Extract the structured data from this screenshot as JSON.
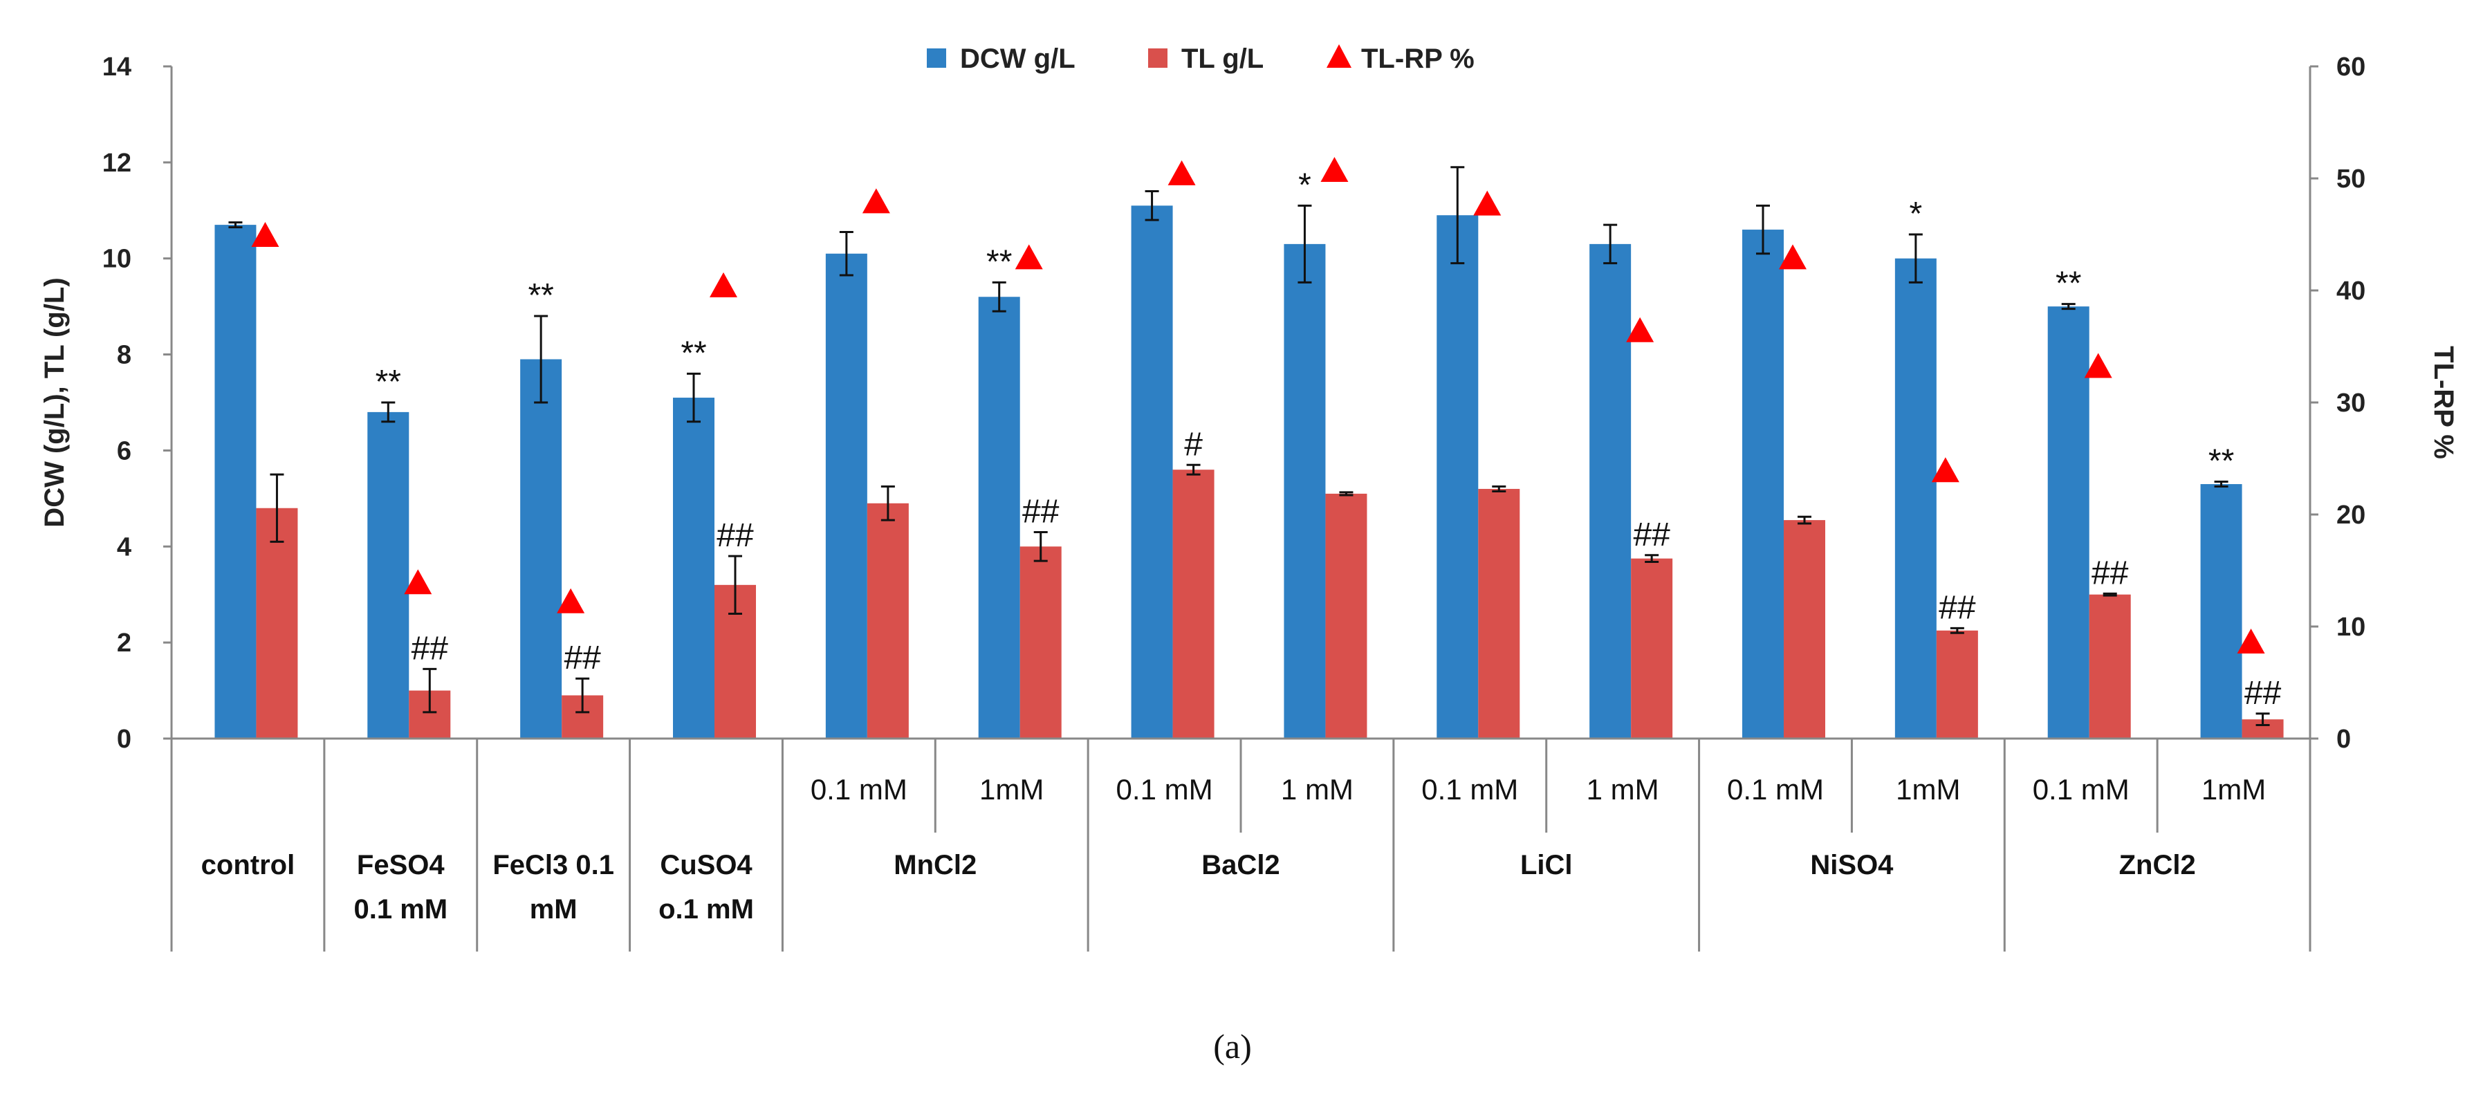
{
  "chart_data": {
    "type": "bar",
    "panel_label": "(a)",
    "ylabel_left": "DCW (g/L), TL (g/L)",
    "ylabel_right": "TL-RP %",
    "ylim_left": [
      0,
      14
    ],
    "ylim_right": [
      0,
      60
    ],
    "yticks_left": [
      "0",
      "2",
      "4",
      "6",
      "8",
      "10",
      "12",
      "14"
    ],
    "yticks_right": [
      "0",
      "10",
      "20",
      "30",
      "40",
      "50",
      "60"
    ],
    "legend": [
      "DCW g/L",
      "TL g/L",
      "TL-RP %"
    ],
    "colors": {
      "dcw": "#2e80c4",
      "tl": "#d9504c",
      "rp": "#ff0000"
    },
    "subcategories": [
      "",
      "",
      "",
      "",
      "0.1 mM",
      "1mM",
      "0.1 mM",
      "1 mM",
      "0.1 mM",
      "1 mM",
      "0.1 mM",
      "1mM",
      "0.1 mM",
      "1mM"
    ],
    "groups": [
      {
        "label": [
          "control"
        ],
        "span": 1
      },
      {
        "label": [
          "FeSO4",
          "0.1 mM"
        ],
        "span": 1
      },
      {
        "label": [
          "FeCl3 0.1",
          "mM"
        ],
        "span": 1
      },
      {
        "label": [
          "CuSO4",
          "o.1 mM"
        ],
        "span": 1
      },
      {
        "label": [
          "MnCl2"
        ],
        "span": 2
      },
      {
        "label": [
          "BaCl2"
        ],
        "span": 2
      },
      {
        "label": [
          "LiCl"
        ],
        "span": 2
      },
      {
        "label": [
          "NiSO4"
        ],
        "span": 2
      },
      {
        "label": [
          "ZnCl2"
        ],
        "span": 2
      }
    ],
    "series": [
      {
        "name": "DCW g/L",
        "axis": "left",
        "values": [
          10.7,
          6.8,
          7.9,
          7.1,
          10.1,
          9.2,
          11.1,
          10.3,
          10.9,
          10.3,
          10.6,
          10.0,
          9.0,
          5.3
        ],
        "errors": [
          0.05,
          0.2,
          0.9,
          0.5,
          0.45,
          0.3,
          0.3,
          0.8,
          1.0,
          0.4,
          0.5,
          0.5,
          0.05,
          0.05
        ],
        "significance": [
          "",
          "**",
          "**",
          "**",
          "",
          "**",
          "",
          "*",
          "",
          "",
          "",
          "*",
          "**",
          "**"
        ]
      },
      {
        "name": "TL g/L",
        "axis": "left",
        "values": [
          4.8,
          1.0,
          0.9,
          3.2,
          4.9,
          4.0,
          5.6,
          5.1,
          5.2,
          3.75,
          4.55,
          2.25,
          3.0,
          0.4
        ],
        "errors": [
          0.7,
          0.45,
          0.35,
          0.6,
          0.35,
          0.3,
          0.1,
          0.03,
          0.05,
          0.07,
          0.07,
          0.05,
          0.02,
          0.12
        ],
        "significance": [
          "",
          "##",
          "##",
          "##",
          "",
          "##",
          "#",
          "",
          "",
          "##",
          "",
          "##",
          "##",
          "##"
        ]
      },
      {
        "name": "TL-RP %",
        "axis": "right",
        "type": "scatter",
        "values": [
          45,
          14,
          12.3,
          40.5,
          48,
          43,
          50.5,
          50.8,
          47.8,
          36.5,
          43,
          24,
          33.3,
          8.7
        ]
      }
    ]
  }
}
